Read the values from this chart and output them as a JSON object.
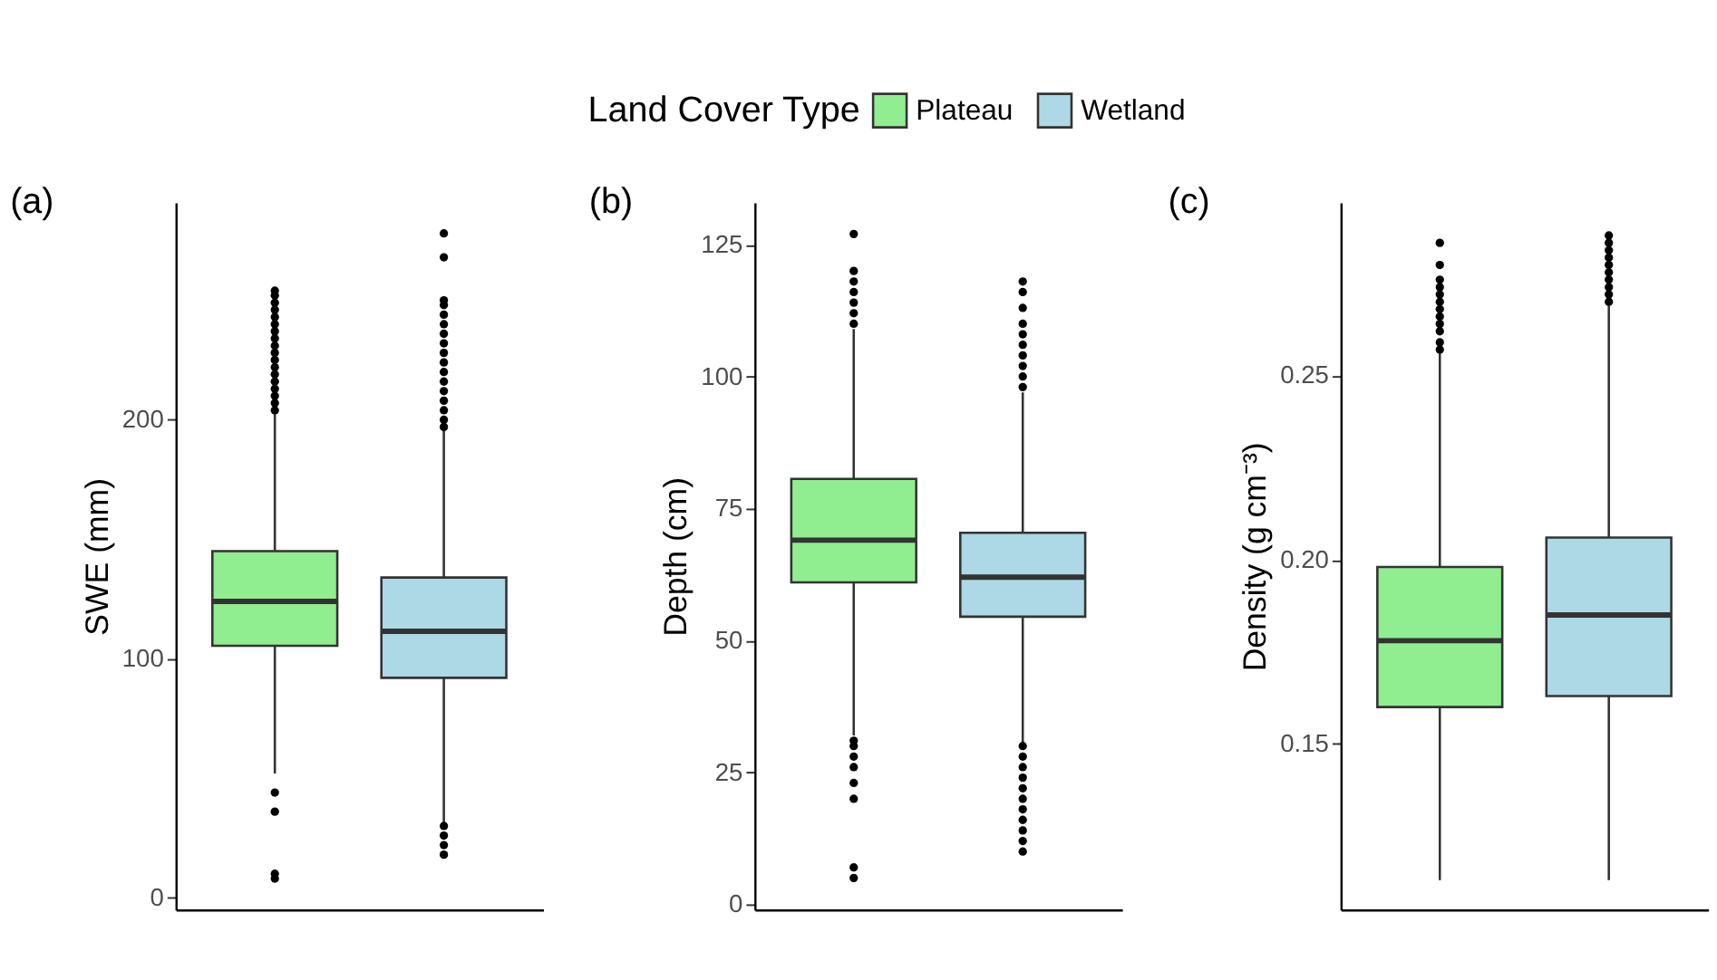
{
  "chart_data": [
    {
      "type": "box",
      "title": "(a)",
      "ylabel": "SWE (mm)",
      "categories": [
        null
      ],
      "ylim": [
        -5,
        291
      ],
      "yticks": [
        0,
        100,
        200
      ],
      "tick_labels": "y",
      "legend": "top",
      "legend_title": "Land Cover Type",
      "series": [
        {
          "name": "Plateau",
          "color": "#90ee90",
          "boxes": [
            {
              "low": 52,
              "q1": 105.4,
              "median": 124,
              "q3": 145,
              "high": 203,
              "outliers": [
                204,
                207,
                210,
                213,
                216,
                219,
                222,
                225,
                228,
                231,
                234,
                237,
                240,
                243,
                246,
                249,
                252,
                254,
                44,
                36,
                10,
                8
              ]
            }
          ]
        },
        {
          "name": "Wetland",
          "color": "#add8e6",
          "boxes": [
            {
              "low": 31,
              "q1": 92,
              "median": 111.5,
              "q3": 134,
              "high": 196,
              "outliers": [
                197,
                200,
                204,
                208,
                212,
                216,
                220,
                224,
                228,
                232,
                236,
                240,
                244,
                248,
                250,
                268,
                278,
                30,
                26,
                22,
                18
              ]
            }
          ]
        }
      ]
    },
    {
      "type": "box",
      "title": "(b)",
      "ylabel": "Depth (cm)",
      "categories": [
        null
      ],
      "ylim": [
        -1,
        133
      ],
      "yticks": [
        0,
        25,
        50,
        75,
        100,
        125
      ],
      "tick_labels": "y",
      "series": [
        {
          "name": "Plateau",
          "color": "#90ee90",
          "boxes": [
            {
              "low": 32,
              "q1": 61,
              "median": 69,
              "q3": 80.6,
              "high": 109,
              "outliers": [
                110,
                112,
                114,
                116,
                118,
                120,
                127,
                31,
                30,
                28,
                26,
                23,
                20,
                7,
                5
              ]
            }
          ]
        },
        {
          "name": "Wetland",
          "color": "#add8e6",
          "boxes": [
            {
              "low": 30.5,
              "q1": 54.5,
              "median": 62,
              "q3": 70.4,
              "high": 97,
              "outliers": [
                98,
                100,
                102,
                104,
                106,
                108,
                110,
                113,
                116,
                118,
                30,
                28,
                26,
                24,
                22,
                20,
                18,
                16,
                14,
                12,
                10
              ]
            }
          ]
        }
      ]
    },
    {
      "type": "box",
      "title": "(c)",
      "ylabel": "Density (g cm⁻³)",
      "categories": [
        null
      ],
      "ylim": [
        0.105,
        0.297
      ],
      "yticks": [
        0.15,
        {
          "value": 0.2,
          "label": "0.20"
        },
        0.25
      ],
      "tick_labels": "y",
      "series": [
        {
          "name": "Plateau",
          "color": "#90ee90",
          "boxes": [
            {
              "low": 0.113,
              "q1": 0.16,
              "median": 0.178,
              "q3": 0.198,
              "high": 0.256,
              "outliers": [
                0.257,
                0.259,
                0.262,
                0.264,
                0.266,
                0.268,
                0.27,
                0.272,
                0.274,
                0.276,
                0.28,
                0.286
              ]
            }
          ]
        },
        {
          "name": "Wetland",
          "color": "#add8e6",
          "boxes": [
            {
              "low": 0.113,
              "q1": 0.163,
              "median": 0.185,
              "q3": 0.206,
              "high": 0.269,
              "outliers": [
                0.27,
                0.272,
                0.274,
                0.276,
                0.278,
                0.28,
                0.282,
                0.284,
                0.286,
                0.288
              ]
            }
          ]
        }
      ]
    }
  ]
}
